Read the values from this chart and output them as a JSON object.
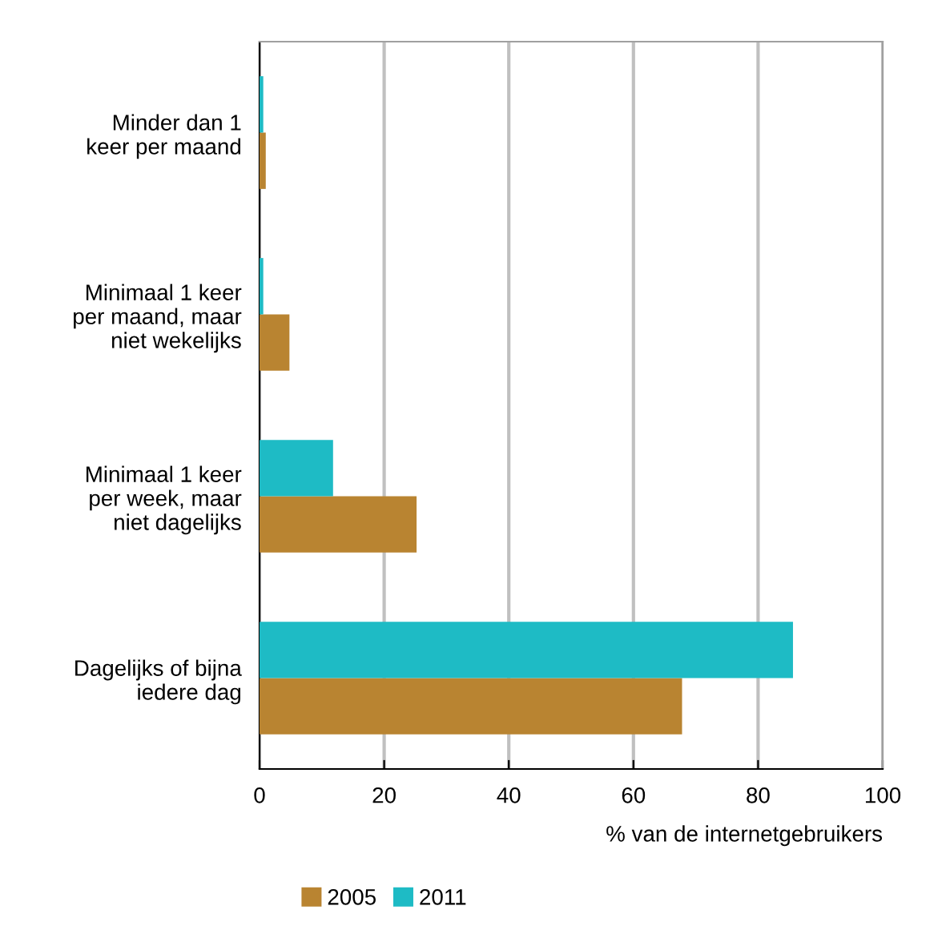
{
  "chart_data": {
    "type": "bar",
    "orientation": "horizontal",
    "xlabel": "% van de internetgebruikers",
    "categories": [
      "Minder dan 1\nkeer per maand",
      "Minimaal 1 keer\nper maand, maar\nniet wekelijks",
      "Minimaal 1 keer\nper week, maar\nniet dagelijks",
      "Dagelijks of bijna\niedere dag"
    ],
    "series": [
      {
        "name": "2005",
        "color": "#b98431",
        "values": [
          1.0,
          4.8,
          25.2,
          67.8
        ]
      },
      {
        "name": "2011",
        "color": "#1ebbc5",
        "values": [
          0.6,
          0.6,
          11.8,
          85.6
        ]
      }
    ],
    "xlim": [
      0,
      100
    ],
    "xticks": [
      0,
      20,
      40,
      60,
      80,
      100
    ],
    "grid": "x",
    "legend": "bottom left"
  }
}
